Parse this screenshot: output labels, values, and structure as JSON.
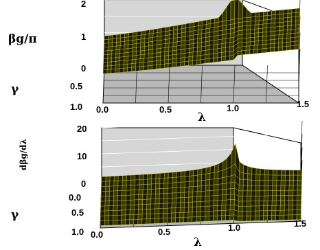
{
  "chart_data": [
    {
      "type": "surface",
      "zlabel": "βg/π",
      "xlabel": "λ",
      "ylabel": "γ",
      "x_ticks": [
        "0.0",
        "0.5",
        "1.0",
        "1.5"
      ],
      "y_ticks": [
        "0",
        "0.5",
        "1.0"
      ],
      "z_ticks": [
        "2",
        "1",
        "0"
      ],
      "xlim": [
        0,
        1.5
      ],
      "ylim": [
        0,
        1
      ],
      "zlim": [
        0,
        2
      ],
      "surface_color": "#e8e000",
      "wire_color": "#000000",
      "description_values": {
        "z_at_lambda_0": 0.9,
        "z_at_lambda_1": 1.6,
        "z_at_lambda_1_5": 1.75
      }
    },
    {
      "type": "surface",
      "zlabel": "dβg/dλ",
      "xlabel": "λ",
      "ylabel": "γ",
      "x_ticks": [
        "0.0",
        "0.5",
        "1.0",
        "1.5"
      ],
      "y_ticks": [
        "0.0",
        "0.5",
        "1.0"
      ],
      "z_ticks": [
        "20",
        "10",
        "0"
      ],
      "xlim": [
        0,
        1.5
      ],
      "ylim": [
        0,
        1
      ],
      "zlim": [
        0,
        20
      ],
      "surface_color": "#e8e000",
      "wire_color": "#000000",
      "description_values": {
        "z_at_lambda_0": 0.5,
        "peak_lambda": 1.0,
        "peak_z": 20
      }
    }
  ]
}
